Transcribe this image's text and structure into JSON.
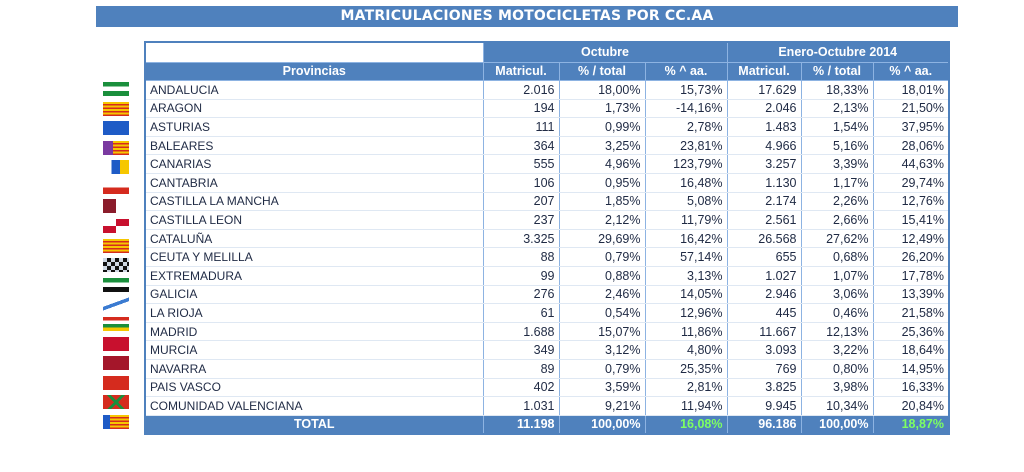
{
  "title": "MATRICULACIONES MOTOCICLETAS POR CC.AA",
  "groups": {
    "g1": "Octubre",
    "g2": "Enero-Octubre 2014"
  },
  "columns": {
    "provincias": "Provincias",
    "matricul": "Matricul.",
    "pct_total": "% / total",
    "pct_aa": "% ^ aa."
  },
  "colors": {
    "header": "#4f81bd",
    "positive": "#33b233",
    "negative": "#e03030"
  },
  "rows": [
    {
      "name": "ANDALUCIA",
      "flag": "andalucia-flag",
      "m1": "2.016",
      "p1": "18,00%",
      "a1": "15,73%",
      "a1s": "pos",
      "m2": "17.629",
      "p2": "18,33%",
      "a2": "18,01%"
    },
    {
      "name": "ARAGON",
      "flag": "aragon-flag",
      "m1": "194",
      "p1": "1,73%",
      "a1": "-14,16%",
      "a1s": "neg",
      "m2": "2.046",
      "p2": "2,13%",
      "a2": "21,50%"
    },
    {
      "name": "ASTURIAS",
      "flag": "asturias-flag",
      "m1": "111",
      "p1": "0,99%",
      "a1": "2,78%",
      "a1s": "pos",
      "m2": "1.483",
      "p2": "1,54%",
      "a2": "37,95%"
    },
    {
      "name": "BALEARES",
      "flag": "baleares-flag",
      "m1": "364",
      "p1": "3,25%",
      "a1": "23,81%",
      "a1s": "pos",
      "m2": "4.966",
      "p2": "5,16%",
      "a2": "28,06%"
    },
    {
      "name": "CANARIAS",
      "flag": "canarias-flag",
      "m1": "555",
      "p1": "4,96%",
      "a1": "123,79%",
      "a1s": "pos",
      "m2": "3.257",
      "p2": "3,39%",
      "a2": "44,63%"
    },
    {
      "name": "CANTABRIA",
      "flag": "cantabria-flag",
      "m1": "106",
      "p1": "0,95%",
      "a1": "16,48%",
      "a1s": "pos",
      "m2": "1.130",
      "p2": "1,17%",
      "a2": "29,74%"
    },
    {
      "name": "CASTILLA LA MANCHA",
      "flag": "castilla-la-mancha-flag",
      "m1": "207",
      "p1": "1,85%",
      "a1": "5,08%",
      "a1s": "pos",
      "m2": "2.174",
      "p2": "2,26%",
      "a2": "12,76%"
    },
    {
      "name": "CASTILLA LEON",
      "flag": "castilla-leon-flag",
      "m1": "237",
      "p1": "2,12%",
      "a1": "11,79%",
      "a1s": "pos",
      "m2": "2.561",
      "p2": "2,66%",
      "a2": "15,41%"
    },
    {
      "name": "CATALUÑA",
      "flag": "cataluna-flag",
      "m1": "3.325",
      "p1": "29,69%",
      "a1": "16,42%",
      "a1s": "pos",
      "m2": "26.568",
      "p2": "27,62%",
      "a2": "12,49%"
    },
    {
      "name": "CEUTA Y MELILLA",
      "flag": "ceuta-melilla-flag",
      "m1": "88",
      "p1": "0,79%",
      "a1": "57,14%",
      "a1s": "pos",
      "m2": "655",
      "p2": "0,68%",
      "a2": "26,20%"
    },
    {
      "name": "EXTREMADURA",
      "flag": "extremadura-flag",
      "m1": "99",
      "p1": "0,88%",
      "a1": "3,13%",
      "a1s": "pos",
      "m2": "1.027",
      "p2": "1,07%",
      "a2": "17,78%"
    },
    {
      "name": "GALICIA",
      "flag": "galicia-flag",
      "m1": "276",
      "p1": "2,46%",
      "a1": "14,05%",
      "a1s": "pos",
      "m2": "2.946",
      "p2": "3,06%",
      "a2": "13,39%"
    },
    {
      "name": "LA RIOJA",
      "flag": "la-rioja-flag",
      "m1": "61",
      "p1": "0,54%",
      "a1": "12,96%",
      "a1s": "pos",
      "m2": "445",
      "p2": "0,46%",
      "a2": "21,58%"
    },
    {
      "name": "MADRID",
      "flag": "madrid-flag",
      "m1": "1.688",
      "p1": "15,07%",
      "a1": "11,86%",
      "a1s": "pos",
      "m2": "11.667",
      "p2": "12,13%",
      "a2": "25,36%"
    },
    {
      "name": "MURCIA",
      "flag": "murcia-flag",
      "m1": "349",
      "p1": "3,12%",
      "a1": "4,80%",
      "a1s": "pos",
      "m2": "3.093",
      "p2": "3,22%",
      "a2": "18,64%"
    },
    {
      "name": "NAVARRA",
      "flag": "navarra-flag",
      "m1": "89",
      "p1": "0,79%",
      "a1": "25,35%",
      "a1s": "pos",
      "m2": "769",
      "p2": "0,80%",
      "a2": "14,95%"
    },
    {
      "name": "PAIS VASCO",
      "flag": "pais-vasco-flag",
      "m1": "402",
      "p1": "3,59%",
      "a1": "2,81%",
      "a1s": "pos",
      "m2": "3.825",
      "p2": "3,98%",
      "a2": "16,33%"
    },
    {
      "name": "COMUNIDAD VALENCIANA",
      "flag": "comunidad-valenciana-flag",
      "m1": "1.031",
      "p1": "9,21%",
      "a1": "11,94%",
      "a1s": "pos",
      "m2": "9.945",
      "p2": "10,34%",
      "a2": "20,84%"
    }
  ],
  "total": {
    "label": "TOTAL",
    "m1": "11.198",
    "p1": "100,00%",
    "a1": "16,08%",
    "m2": "96.186",
    "p2": "100,00%",
    "a2": "18,87%"
  }
}
